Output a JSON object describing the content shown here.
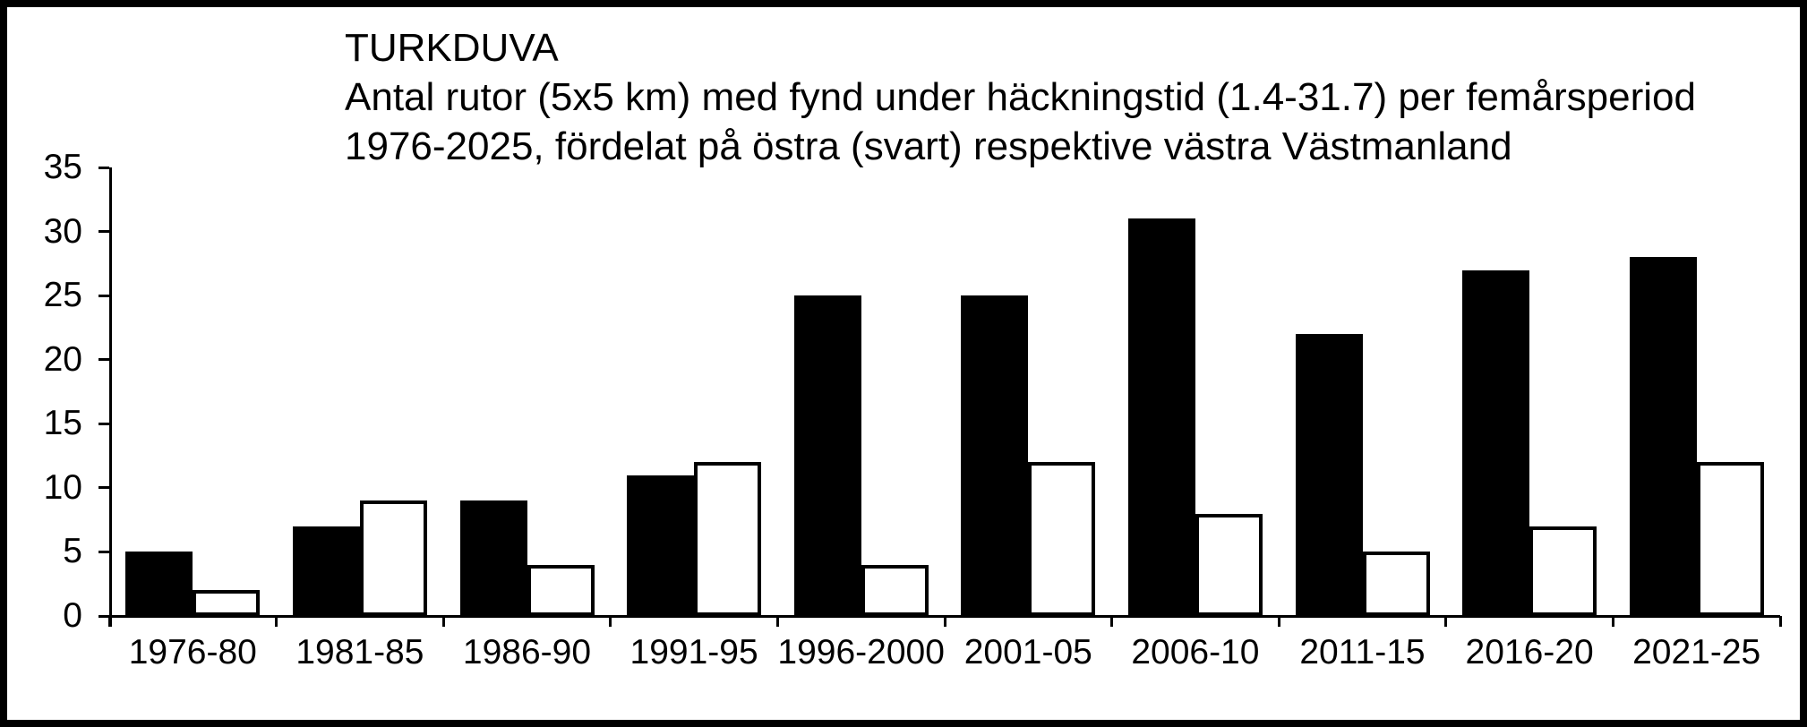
{
  "window": {
    "background_color": "#ffffff",
    "border_color": "#000000"
  },
  "chart_data": {
    "type": "bar",
    "title": "TURKDUVA",
    "subtitle_line1": "Antal rutor (5x5 km) med fynd under häckningstid (1.4-31.7) per femårsperiod",
    "subtitle_line2": "1976-2025, fördelat på östra (svart) respektive västra Västmanland",
    "categories": [
      "1976-80",
      "1981-85",
      "1986-90",
      "1991-95",
      "1996-2000",
      "2001-05",
      "2006-10",
      "2011-15",
      "2016-20",
      "2021-25"
    ],
    "series": [
      {
        "name": "östra Västmanland (svart)",
        "color": "#000000",
        "values": [
          5,
          7,
          9,
          11,
          25,
          25,
          31,
          22,
          27,
          28
        ]
      },
      {
        "name": "västra Västmanland (vit)",
        "color": "#ffffff",
        "values": [
          2,
          9,
          4,
          12,
          4,
          12,
          8,
          5,
          7,
          12
        ]
      }
    ],
    "xlabel": "",
    "ylabel": "",
    "ylim": [
      0,
      35
    ],
    "yticks": [
      0,
      5,
      10,
      15,
      20,
      25,
      30,
      35
    ],
    "grid": false,
    "legend_position": "none"
  }
}
